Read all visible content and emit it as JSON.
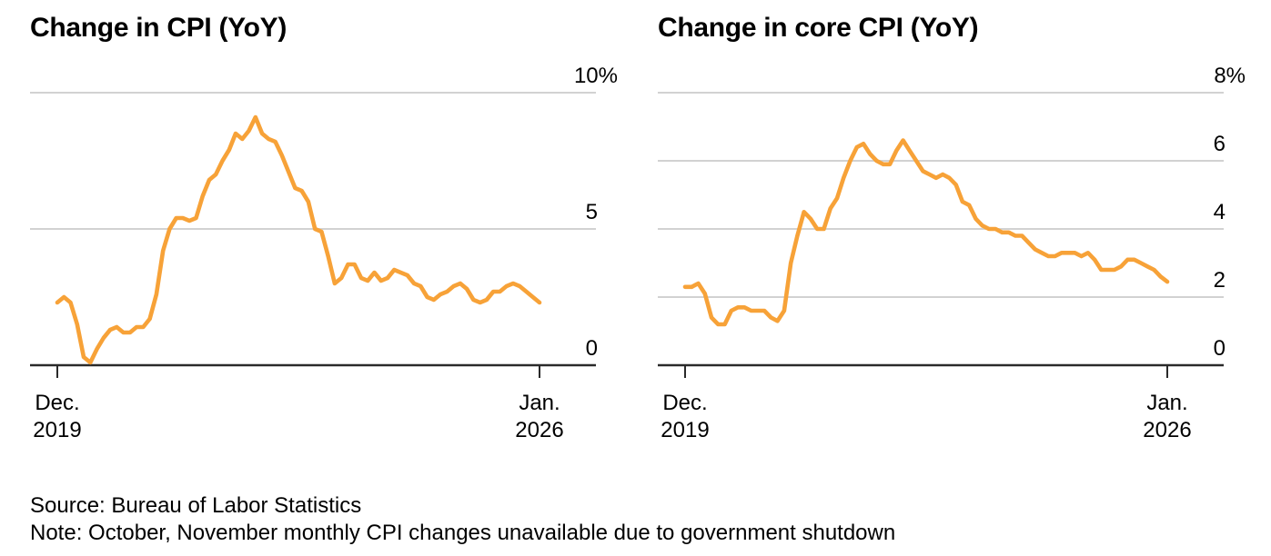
{
  "page": {
    "background": "#ffffff"
  },
  "colors": {
    "line": "#F7A238",
    "gridline": "#D2D2D2",
    "axis": "#2A2A2A",
    "text": "#000000"
  },
  "footer": {
    "source": "Source: Bureau of Labor Statistics",
    "note": "Note: October, November monthly CPI changes unavailable due to government shutdown"
  },
  "chart_data": [
    {
      "type": "line",
      "title": "Change in CPI (YoY)",
      "series_name": "CPI year-over-year change (%)",
      "frequency": "monthly",
      "x_start": "Dec. 2019",
      "x_end": "Jan. 2026",
      "x_start_label": [
        "Dec.",
        "2019"
      ],
      "x_end_label": [
        "Jan.",
        "2026"
      ],
      "ylim": [
        0,
        10
      ],
      "y_tick_values": [
        10,
        5,
        0
      ],
      "y_tick_labels": [
        "10%",
        "5",
        "0"
      ],
      "grid": "horizontal",
      "legend": "none",
      "values": [
        2.3,
        2.5,
        2.3,
        1.5,
        0.3,
        0.1,
        0.6,
        1.0,
        1.3,
        1.4,
        1.2,
        1.2,
        1.4,
        1.4,
        1.7,
        2.6,
        4.2,
        5.0,
        5.4,
        5.4,
        5.3,
        5.4,
        6.2,
        6.8,
        7.0,
        7.5,
        7.9,
        8.5,
        8.3,
        8.6,
        9.1,
        8.5,
        8.3,
        8.2,
        7.7,
        7.1,
        6.5,
        6.4,
        6.0,
        5.0,
        4.9,
        4.0,
        3.0,
        3.2,
        3.7,
        3.7,
        3.2,
        3.1,
        3.4,
        3.1,
        3.2,
        3.5,
        3.4,
        3.3,
        3.0,
        2.9,
        2.5,
        2.4,
        2.6,
        2.7,
        2.9,
        3.0,
        2.8,
        2.4,
        2.3,
        2.4,
        2.7,
        2.7,
        2.9,
        3.0,
        2.9,
        2.7,
        2.5,
        2.3
      ]
    },
    {
      "type": "line",
      "title": "Change in core CPI (YoY)",
      "series_name": "Core CPI year-over-year change (%)",
      "frequency": "monthly",
      "x_start": "Dec. 2019",
      "x_end": "Jan. 2026",
      "x_start_label": [
        "Dec.",
        "2019"
      ],
      "x_end_label": [
        "Jan.",
        "2026"
      ],
      "ylim": [
        0,
        8
      ],
      "y_tick_values": [
        8,
        6,
        4,
        2,
        0
      ],
      "y_tick_labels": [
        "8%",
        "6",
        "4",
        "2",
        "0"
      ],
      "grid": "horizontal",
      "legend": "none",
      "values": [
        2.3,
        2.3,
        2.4,
        2.1,
        1.4,
        1.2,
        1.2,
        1.6,
        1.7,
        1.7,
        1.6,
        1.6,
        1.6,
        1.4,
        1.3,
        1.6,
        3.0,
        3.8,
        4.5,
        4.3,
        4.0,
        4.0,
        4.6,
        4.9,
        5.5,
        6.0,
        6.4,
        6.5,
        6.2,
        6.0,
        5.9,
        5.9,
        6.3,
        6.6,
        6.3,
        6.0,
        5.7,
        5.6,
        5.5,
        5.6,
        5.5,
        5.3,
        4.8,
        4.7,
        4.3,
        4.1,
        4.0,
        4.0,
        3.9,
        3.9,
        3.8,
        3.8,
        3.6,
        3.4,
        3.3,
        3.2,
        3.2,
        3.3,
        3.3,
        3.3,
        3.2,
        3.3,
        3.1,
        2.8,
        2.8,
        2.8,
        2.9,
        3.1,
        3.1,
        3.0,
        2.9,
        2.8,
        2.6,
        2.45
      ]
    }
  ]
}
